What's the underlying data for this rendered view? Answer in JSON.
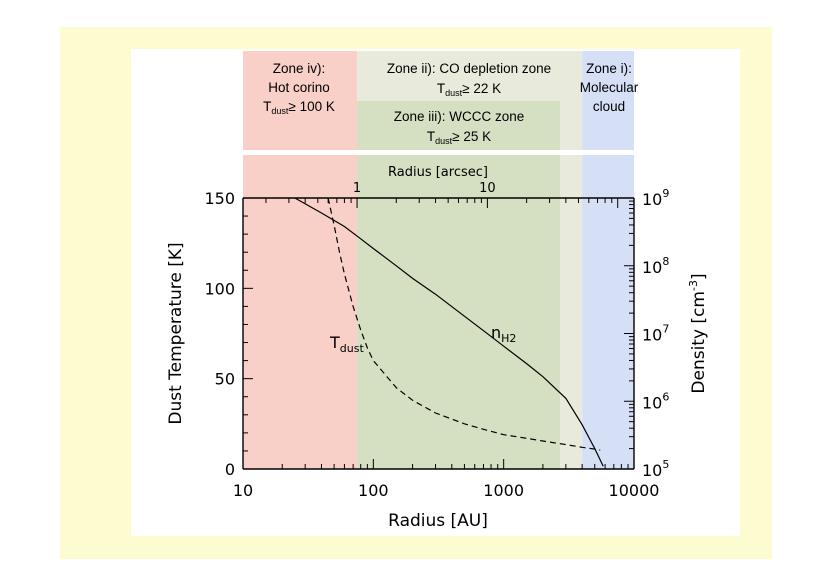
{
  "chart_data": {
    "type": "line",
    "xlabel": "Radius [AU]",
    "x_scale": "log",
    "xlim": [
      10,
      10000
    ],
    "x_ticks": [
      "10",
      "100",
      "1000",
      "10000"
    ],
    "top_axis": {
      "label": "Radius [arcsec]",
      "ticks": [
        "1",
        "10"
      ],
      "tick_values_au": [
        75,
        750
      ]
    },
    "ylabel_left": "Dust Temperature [K]",
    "ylim_left": [
      0,
      150
    ],
    "y_ticks_left": [
      "0",
      "50",
      "100",
      "150"
    ],
    "ylabel_right_main": "Density ",
    "ylabel_right_unit": "[cm",
    "ylabel_right_exp": "-3",
    "ylabel_right_end": "]",
    "y_scale_right": "log",
    "ylim_right": [
      100000,
      1000000000
    ],
    "y_ticks_right": [
      {
        "base": "10",
        "exp": "5",
        "value": 100000
      },
      {
        "base": "10",
        "exp": "6",
        "value": 1000000
      },
      {
        "base": "10",
        "exp": "7",
        "value": 10000000
      },
      {
        "base": "10",
        "exp": "8",
        "value": 100000000
      },
      {
        "base": "10",
        "exp": "9",
        "value": 1000000000
      }
    ],
    "series": [
      {
        "name_main": "n",
        "name_sub": "H2",
        "style": "solid",
        "axis": "right",
        "x": [
          25,
          40,
          60,
          80,
          100,
          150,
          200,
          300,
          500,
          700,
          1000,
          1500,
          2000,
          3000,
          4000,
          5000,
          5800
        ],
        "y": [
          1000000000,
          600000000,
          380000000,
          250000000,
          180000000,
          100000000,
          65000000,
          38000000,
          18000000,
          11000000,
          6500000,
          3600000,
          2300000,
          1100000,
          450000,
          200000,
          110000
        ]
      },
      {
        "name_main": "T",
        "name_sub": "dust",
        "style": "dashed",
        "axis": "left",
        "x": [
          45,
          50,
          55,
          60,
          70,
          80,
          90,
          100,
          150,
          200,
          300,
          500,
          700,
          1000,
          1500,
          2000,
          3000,
          4000,
          5000,
          5500
        ],
        "y": [
          150,
          135,
          120,
          108,
          90,
          77,
          67,
          60,
          45,
          38,
          31,
          25,
          22,
          19,
          17,
          15.5,
          13.5,
          12,
          11,
          10.5
        ]
      }
    ],
    "zones": [
      {
        "id": "iv",
        "x_range": [
          10,
          75
        ],
        "color": "#f8d0c8",
        "lines": [
          "Zone iv):",
          "Hot corino"
        ],
        "cond_main": "T",
        "cond_sub": "dust",
        "cond_rest": "≥ 100 K"
      },
      {
        "id": "ii",
        "x_range": [
          75,
          4000
        ],
        "color": "#e8ebdc",
        "lines": [
          "Zone ii): CO depletion zone"
        ],
        "cond_main": "T",
        "cond_sub": "dust",
        "cond_rest": "≥ 22 K"
      },
      {
        "id": "iii",
        "x_range": [
          75,
          2700
        ],
        "color": "#d5dfc2",
        "lines": [
          "Zone iii): WCCC zone"
        ],
        "cond_main": "T",
        "cond_sub": "dust",
        "cond_rest": "≥ 25 K"
      },
      {
        "id": "i",
        "x_range": [
          4000,
          10000
        ],
        "color": "#d5e0f6",
        "lines": [
          "Zone i):",
          "Molecular",
          "cloud"
        ]
      }
    ]
  }
}
